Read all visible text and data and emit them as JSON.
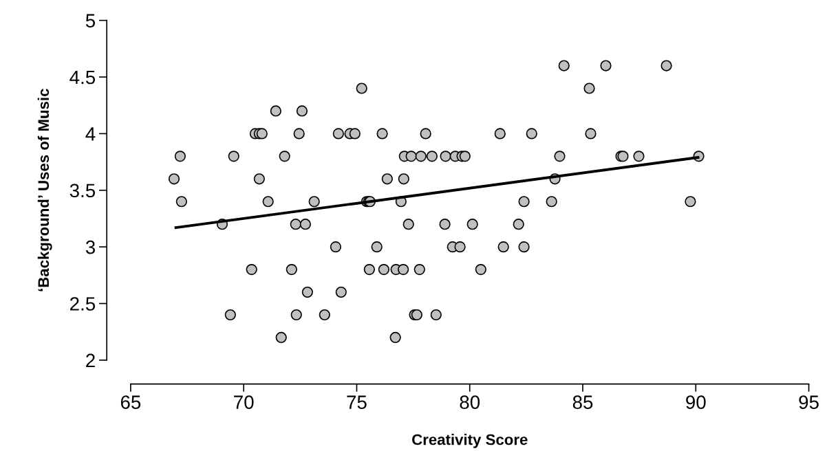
{
  "chart_data": {
    "type": "scatter",
    "xlabel": "Creativity Score",
    "ylabel": "‘Background’ Uses of Music",
    "xlim": [
      65,
      95
    ],
    "ylim": [
      2,
      5
    ],
    "xticks": [
      65,
      70,
      75,
      80,
      85,
      90,
      95
    ],
    "yticks": [
      2,
      2.5,
      3,
      3.5,
      4,
      4.5,
      5
    ],
    "grid": false,
    "series": [
      {
        "marker": "circle",
        "color": "#c0c0c0",
        "x": [
          66.92,
          67.19,
          67.25,
          69.05,
          69.41,
          69.56,
          70.35,
          70.51,
          70.69,
          70.69,
          70.81,
          71.08,
          71.42,
          71.66,
          71.81,
          72.12,
          72.3,
          72.33,
          72.45,
          72.58,
          72.73,
          72.82,
          73.12,
          73.58,
          74.07,
          74.19,
          74.31,
          74.7,
          74.92,
          75.22,
          75.44,
          75.53,
          75.56,
          75.59,
          75.89,
          76.13,
          76.2,
          76.35,
          76.74,
          76.71,
          76.96,
          77.06,
          77.08,
          77.11,
          77.29,
          77.41,
          77.56,
          77.66,
          77.78,
          77.84,
          78.05,
          78.33,
          78.51,
          78.9,
          78.93,
          79.24,
          79.36,
          79.57,
          79.66,
          79.79,
          80.12,
          80.49,
          81.34,
          81.49,
          82.16,
          82.4,
          82.4,
          82.74,
          83.62,
          83.77,
          83.98,
          84.17,
          85.29,
          85.35,
          86.02,
          86.69,
          86.78,
          87.48,
          88.7,
          89.76,
          90.13
        ],
        "values": [
          3.6,
          3.8,
          3.4,
          3.2,
          2.4,
          3.8,
          2.8,
          4.0,
          3.6,
          4.0,
          4.0,
          3.4,
          4.2,
          2.2,
          3.8,
          2.8,
          3.2,
          2.4,
          4.0,
          4.2,
          3.2,
          2.6,
          3.4,
          2.4,
          3.0,
          4.0,
          2.6,
          4.0,
          4.0,
          4.4,
          3.4,
          3.4,
          2.8,
          3.4,
          3.0,
          4.0,
          2.8,
          3.6,
          2.8,
          2.2,
          3.4,
          2.8,
          3.6,
          3.8,
          3.2,
          3.8,
          2.4,
          2.4,
          2.8,
          3.8,
          4.0,
          3.8,
          2.4,
          3.2,
          3.8,
          3.0,
          3.8,
          3.0,
          3.8,
          3.8,
          3.2,
          2.8,
          4.0,
          3.0,
          3.2,
          3.4,
          3.0,
          4.0,
          3.4,
          3.6,
          3.8,
          4.6,
          4.4,
          4.0,
          4.6,
          3.8,
          3.8,
          3.8,
          4.6,
          3.4,
          3.8
        ]
      },
      {
        "type": "line",
        "color": "#000000",
        "x": [
          67.0,
          90.1
        ],
        "values": [
          3.17,
          3.79
        ]
      }
    ]
  }
}
